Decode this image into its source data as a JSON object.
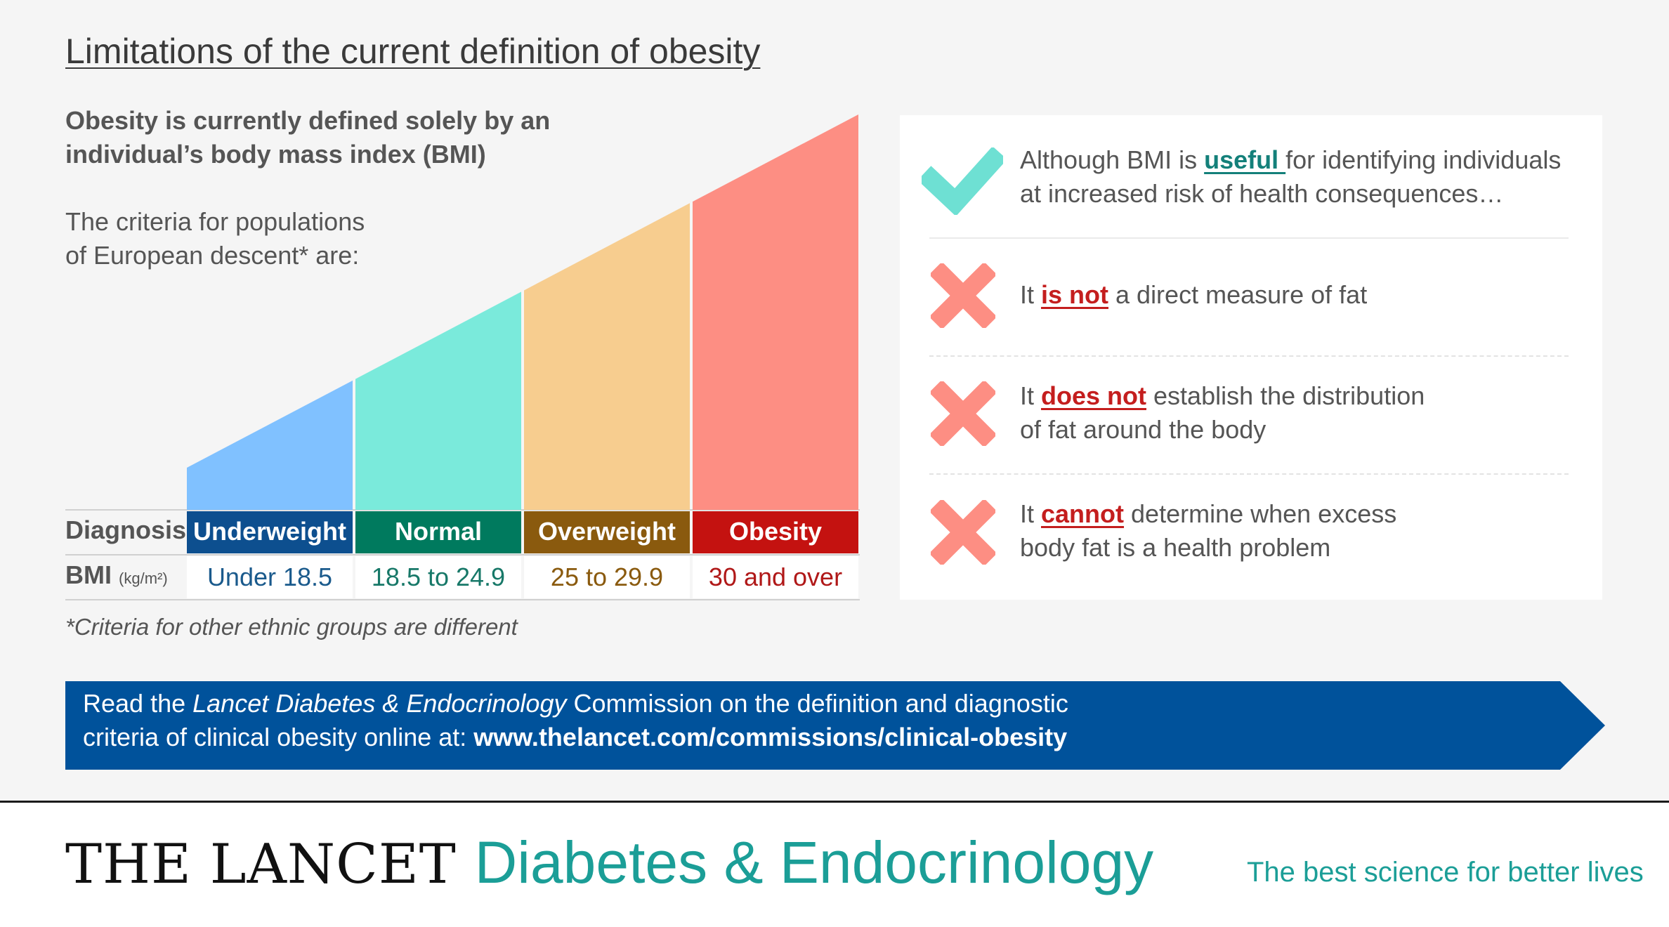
{
  "title": "Limitations of the current definition of obesity",
  "lead": [
    "Obesity is currently defined solely by an",
    "individual’s body mass index (BMI)"
  ],
  "criteria": [
    "The criteria for populations",
    "of European descent* are:"
  ],
  "chart_data": {
    "type": "table",
    "row_labels": {
      "diagnosis": "Diagnosis",
      "bmi": "BMI",
      "bmi_unit": "(kg/m²)"
    },
    "categories": [
      {
        "label": "Underweight",
        "bmi": "Under 18.5",
        "header_color": "#0d4f8f",
        "fill_color": "#80c1ff",
        "text_color": "#1a5a8c"
      },
      {
        "label": "Normal",
        "bmi": "18.5 to 24.9",
        "header_color": "#007a5e",
        "fill_color": "#7aeadb",
        "text_color": "#177868"
      },
      {
        "label": "Overweight",
        "bmi": "25 to 29.9",
        "header_color": "#8a5a0e",
        "fill_color": "#f7cd8f",
        "text_color": "#8a5a0e"
      },
      {
        "label": "Obesity",
        "bmi": "30 and over",
        "header_color": "#c41210",
        "fill_color": "#fd8e83",
        "text_color": "#b01818"
      }
    ]
  },
  "footnote": "*Criteria for other ethnic groups are different",
  "limitations": [
    {
      "icon": "check-icon",
      "before": "Although BMI is ",
      "keyword": "useful ",
      "after": "for identifying individuals",
      "line2": "at increased risk of health consequences…"
    },
    {
      "icon": "cross-icon",
      "before": "It ",
      "keyword": "is not",
      "after": " a direct measure of fat",
      "line2": ""
    },
    {
      "icon": "cross-icon",
      "before": "It ",
      "keyword": "does not",
      "after": " establish the distribution",
      "line2": "of fat around the body"
    },
    {
      "icon": "cross-icon",
      "before": "It ",
      "keyword": "cannot",
      "after": " determine when excess",
      "line2": "body fat is a health problem"
    }
  ],
  "banner": {
    "line1_before": "Read the ",
    "line1_italic": "Lancet Diabetes & Endocrinology",
    "line1_after": " Commission on the definition and diagnostic",
    "line2_before": "criteria of clinical obesity online at: ",
    "url": "www.thelancet.com/commissions/clinical-obesity",
    "color": "#00529b"
  },
  "brand": {
    "name": "THE LANCET",
    "journal": "Diabetes & Endocrinology",
    "tagline": "The best science for better lives"
  },
  "colors": {
    "check": "#6ee0d3",
    "cross": "#fd8e83",
    "teal": "#1b9e97"
  }
}
